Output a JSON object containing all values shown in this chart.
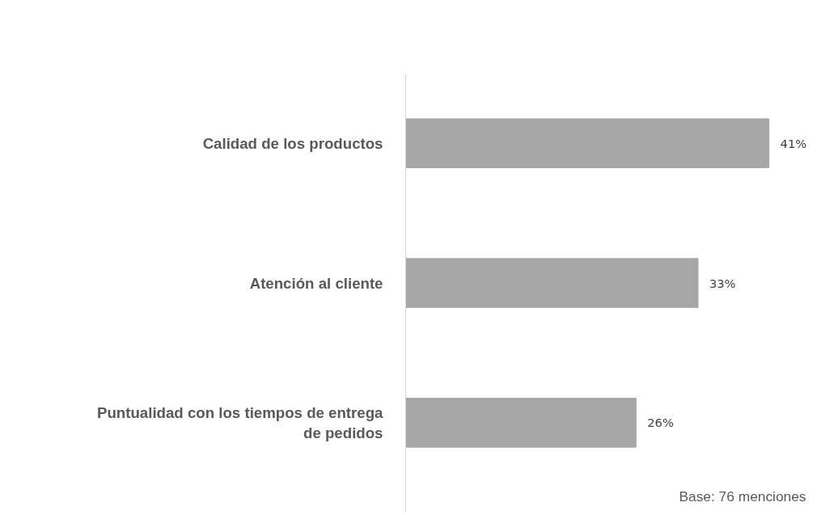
{
  "chart_data": {
    "type": "bar",
    "orientation": "horizontal",
    "categories": [
      "Calidad de los productos",
      "Atención al cliente",
      "Puntualidad con los tiempos de entrega de pedidos"
    ],
    "values": [
      41,
      33,
      26
    ],
    "value_labels": [
      "41%",
      "33%",
      "26%"
    ],
    "color": "#a6a6a6",
    "tick_labels": "y",
    "grid": false,
    "annotations": [
      "Base: 76 menciones"
    ]
  }
}
